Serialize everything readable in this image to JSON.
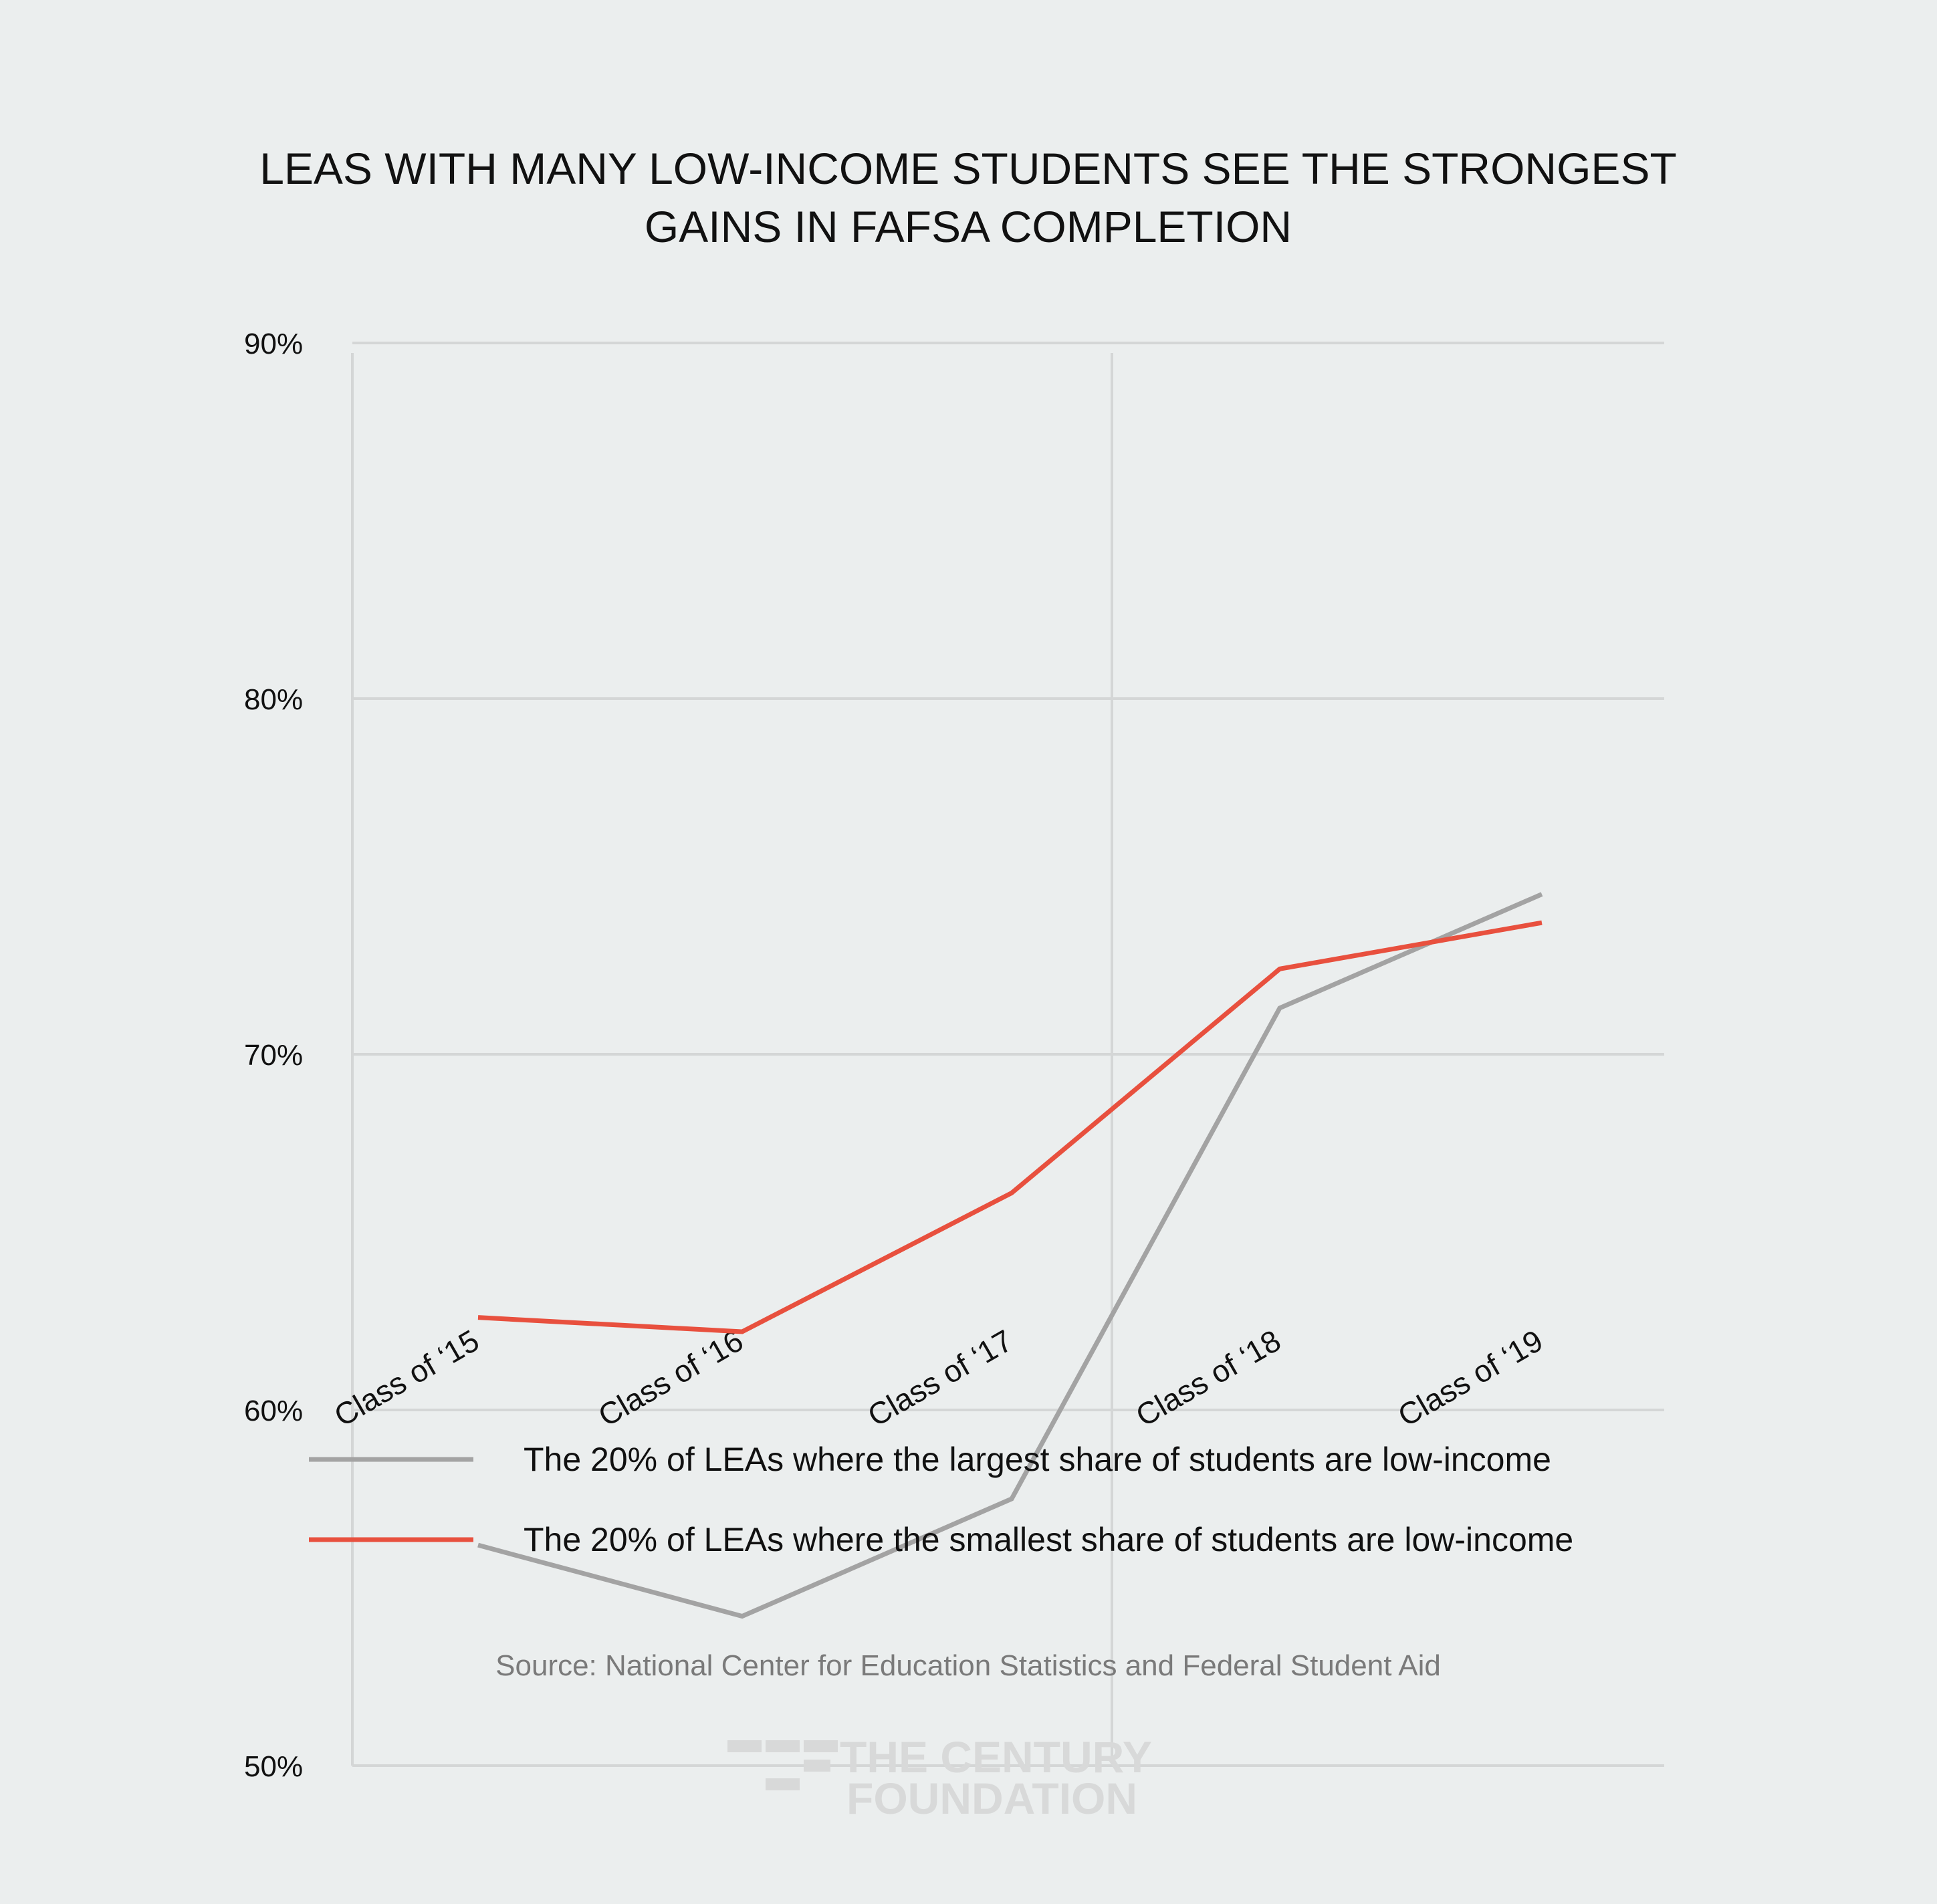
{
  "chart_data": {
    "type": "line",
    "title": [
      "LEAS WITH MANY LOW-INCOME STUDENTS SEE THE STRONGEST",
      "GAINS IN FAFSA COMPLETION"
    ],
    "categories": [
      "Class of ‘15",
      "Class of ‘16",
      "Class of ‘17",
      "Class of ‘18",
      "Class of ‘19"
    ],
    "ylim": [
      50,
      90
    ],
    "yticks": [
      50,
      60,
      70,
      80,
      90
    ],
    "ytick_labels": [
      "50%",
      "60%",
      "70%",
      "80%",
      "90%"
    ],
    "grid": true,
    "legend_position": "bottom",
    "series": [
      {
        "name": "The 20% of LEAs where the largest share of students are low-income",
        "color": "#a3a3a3",
        "values": [
          56.2,
          54.2,
          57.5,
          71.3,
          74.5
        ]
      },
      {
        "name": "The 20% of LEAs where the smallest share of students are low-income",
        "color": "#e8503e",
        "values": [
          62.6,
          62.2,
          66.1,
          72.4,
          73.7
        ]
      }
    ],
    "source": "Source: National Center for Education Statistics and Federal Student Aid"
  },
  "logo": {
    "line1": "THE CENTURY",
    "line2": "FOUNDATION"
  }
}
